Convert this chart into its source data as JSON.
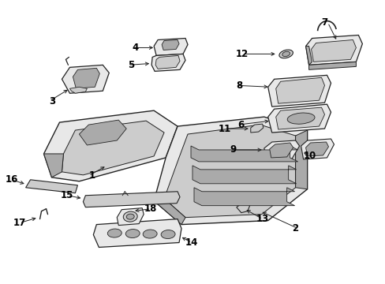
{
  "bg_color": "#ffffff",
  "fig_width": 4.89,
  "fig_height": 3.6,
  "dpi": 100,
  "line_color": "#222222",
  "fill_light": "#e8e8e8",
  "fill_mid": "#cccccc",
  "fill_dark": "#aaaaaa"
}
